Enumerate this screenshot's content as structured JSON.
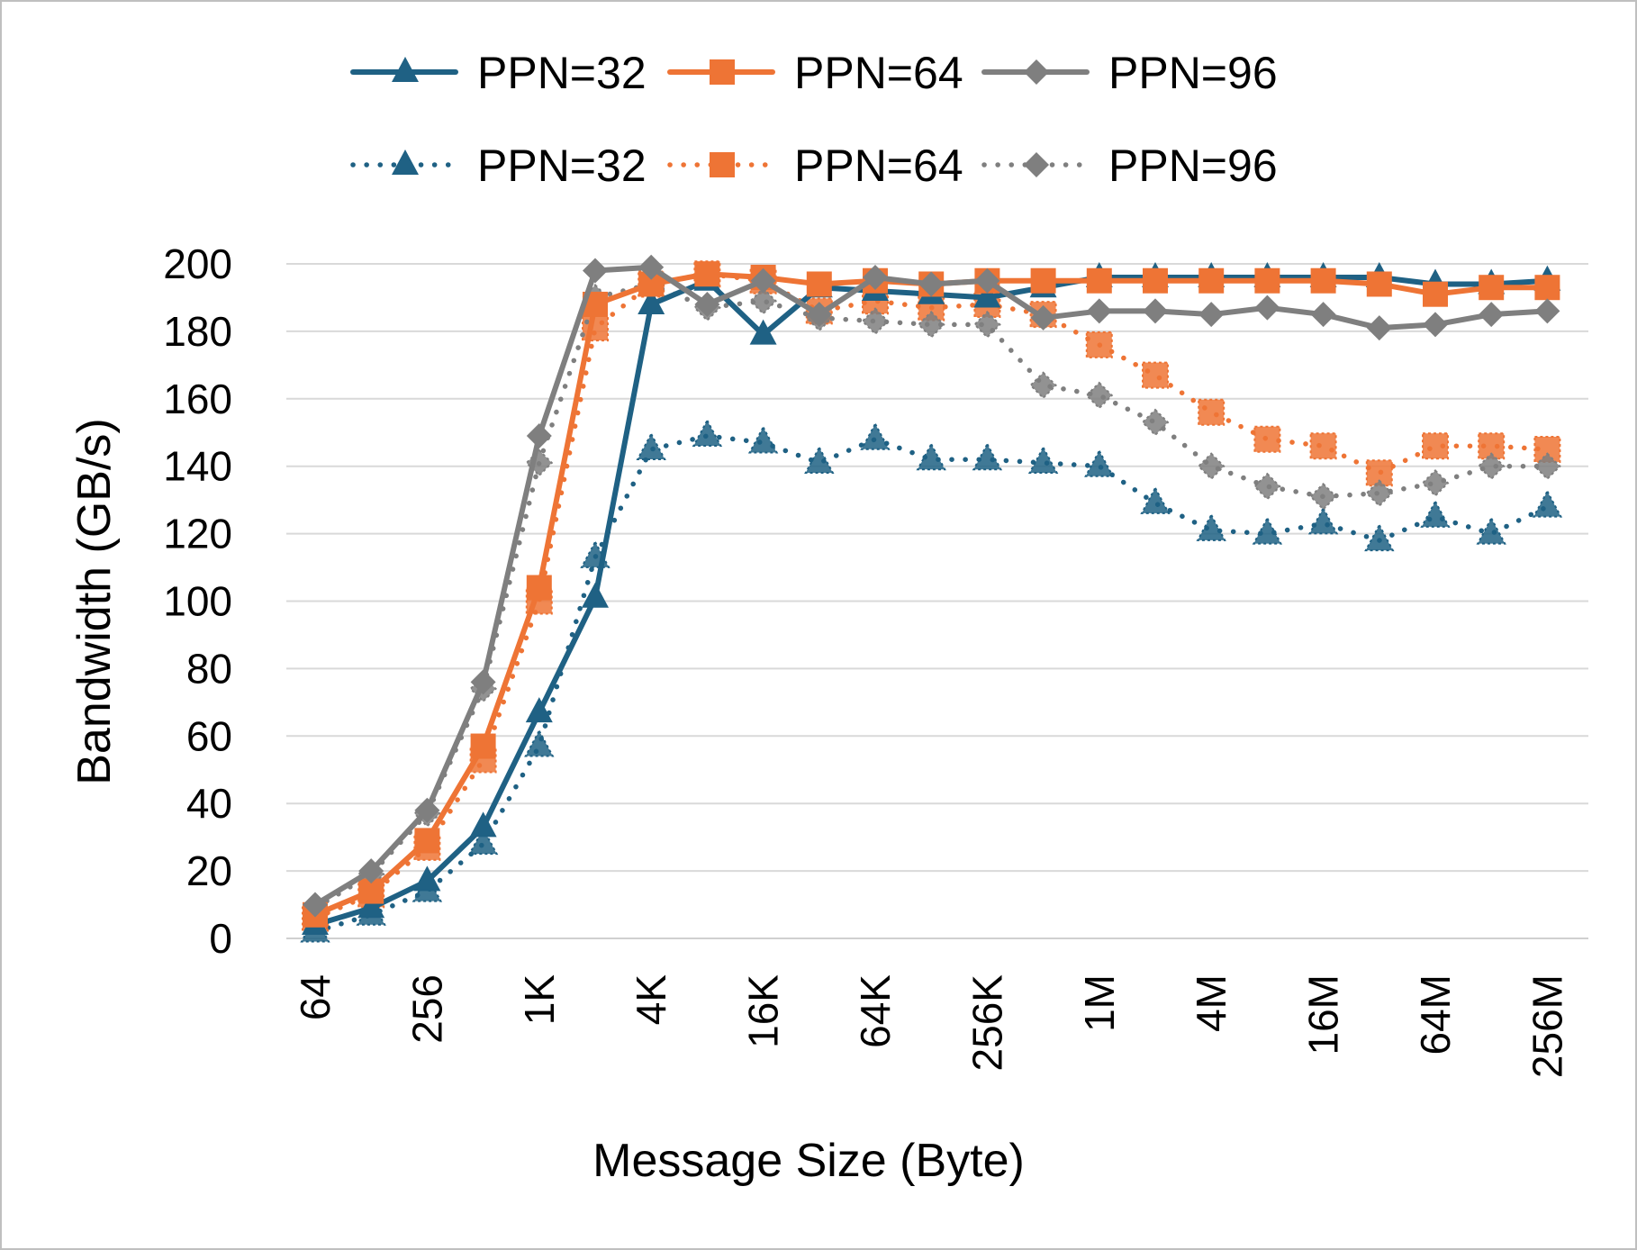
{
  "chart_data": {
    "type": "line",
    "title": "",
    "xlabel": "Message Size (Byte)",
    "ylabel": "Bandwidth (GB/s)",
    "ylim": [
      0,
      200
    ],
    "yticks": [
      "0",
      "20",
      "40",
      "60",
      "80",
      "100",
      "120",
      "140",
      "160",
      "180",
      "200"
    ],
    "x": [
      "64",
      "128",
      "256",
      "512",
      "1K",
      "2K",
      "4K",
      "8K",
      "16K",
      "32K",
      "64K",
      "128K",
      "256K",
      "512K",
      "1M",
      "2M",
      "4M",
      "8M",
      "16M",
      "32M",
      "64M",
      "128M",
      "256M"
    ],
    "x_tick_labels": [
      "64",
      "",
      "256",
      "",
      "1K",
      "",
      "4K",
      "",
      "16K",
      "",
      "64K",
      "",
      "256K",
      "",
      "1M",
      "",
      "4M",
      "",
      "16M",
      "",
      "64M",
      "",
      "256M"
    ],
    "grid": true,
    "legend_position": "top",
    "series": [
      {
        "name": "PPN=32",
        "style": "solid",
        "marker": "triangle",
        "color": "#1f6184",
        "values": [
          4,
          9,
          17,
          33,
          67,
          101,
          188,
          195,
          179,
          193,
          192,
          191,
          190,
          193,
          196,
          196,
          196,
          196,
          196,
          196,
          194,
          194,
          195
        ]
      },
      {
        "name": "PPN=64",
        "style": "solid",
        "marker": "square",
        "color": "#ee7435",
        "values": [
          7,
          14,
          29,
          57,
          104,
          188,
          194,
          197,
          196,
          194,
          195,
          194,
          195,
          195,
          195,
          195,
          195,
          195,
          195,
          194,
          191,
          193,
          193
        ]
      },
      {
        "name": "PPN=96",
        "style": "solid",
        "marker": "diamond",
        "color": "#7f7f7f",
        "values": [
          10,
          20,
          38,
          76,
          149,
          198,
          199,
          188,
          195,
          185,
          196,
          194,
          195,
          184,
          186,
          186,
          185,
          187,
          185,
          181,
          182,
          185,
          186
        ]
      },
      {
        "name": "PPN=32",
        "style": "dotted",
        "marker": "triangle",
        "color": "#1f6184",
        "values": [
          2,
          7,
          14,
          28,
          57,
          113,
          145,
          149,
          147,
          141,
          148,
          142,
          142,
          141,
          140,
          129,
          121,
          120,
          123,
          118,
          125,
          120,
          128
        ]
      },
      {
        "name": "PPN=64",
        "style": "dotted",
        "marker": "square",
        "color": "#ee7435",
        "values": [
          6,
          13,
          27,
          53,
          100,
          181,
          194,
          197,
          195,
          186,
          189,
          187,
          188,
          185,
          176,
          167,
          156,
          148,
          146,
          138,
          146,
          146,
          145
        ]
      },
      {
        "name": "PPN=96",
        "style": "dotted",
        "marker": "diamond",
        "color": "#7f7f7f",
        "values": [
          9,
          19,
          37,
          74,
          141,
          190,
          194,
          187,
          189,
          184,
          183,
          182,
          182,
          164,
          161,
          153,
          140,
          134,
          131,
          132,
          135,
          140,
          140
        ]
      }
    ]
  },
  "legend": {
    "row1": [
      "PPN=32",
      "PPN=64",
      "PPN=96"
    ],
    "row2": [
      "PPN=32",
      "PPN=64",
      "PPN=96"
    ]
  }
}
